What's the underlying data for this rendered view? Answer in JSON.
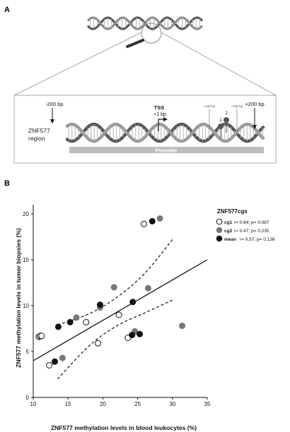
{
  "panel_a": {
    "label": "A",
    "gene_region_line1": "ZNF577",
    "gene_region_line2": "region",
    "pos_minus200": "-200 bp",
    "pos_plus200": "+200 bp",
    "tss_label": "TSS",
    "tss_pos": "+1 bp",
    "pos_plus100": "+100 bp",
    "pos_plus150": "+150 bp",
    "cg1_number": "1",
    "cg2_number": "2",
    "promoter_label": "Promoter"
  },
  "panel_b": {
    "label": "B"
  },
  "colors": {
    "black": "#111111",
    "gray": "#777777",
    "dna_dark": "#555555",
    "dna_light": "#9a9a9a",
    "promoter": "#bdbdbd",
    "frame": "#a8a8a8"
  },
  "chart_data": {
    "type": "scatter",
    "title": "",
    "xlabel": "ZNF577 methylation levels in blood leukocytes (%)",
    "ylabel": "ZNF577 methylation levels in tumor biopsies (%)",
    "xlim": [
      10,
      35
    ],
    "ylim": [
      0,
      21
    ],
    "xticks": [
      10,
      15,
      20,
      25,
      30,
      35
    ],
    "yticks": [
      0,
      5,
      10,
      15,
      20
    ],
    "grid": false,
    "legend_title": "ZNF577cgs",
    "legend_position": "top-right",
    "fit_line": {
      "slope": 0.44,
      "intercept": -0.4
    },
    "confidence_band": {
      "upper": [
        [
          13.5,
          7.9
        ],
        [
          18,
          9.1
        ],
        [
          22,
          10.9
        ],
        [
          26,
          13.5
        ],
        [
          30,
          17.2
        ]
      ],
      "lower": [
        [
          13.5,
          2.0
        ],
        [
          18,
          5.6
        ],
        [
          22,
          7.8
        ],
        [
          26,
          9.2
        ],
        [
          30,
          10.6
        ]
      ]
    },
    "series": [
      {
        "name": "cg1",
        "stats": "r= 0.64; p= 0.087",
        "marker": "open",
        "points": [
          [
            10.8,
            6.6
          ],
          [
            11.0,
            6.7
          ],
          [
            11.2,
            6.7
          ],
          [
            12.3,
            3.5
          ],
          [
            17.6,
            8.2
          ],
          [
            19.3,
            5.9
          ],
          [
            22.3,
            9.0
          ],
          [
            23.6,
            6.5
          ],
          [
            25.9,
            18.9
          ]
        ]
      },
      {
        "name": "cg2",
        "stats": "r= 0.47; p= 0.235",
        "marker": "gray",
        "points": [
          [
            14.2,
            4.3
          ],
          [
            16.2,
            8.7
          ],
          [
            19.6,
            9.8
          ],
          [
            21.6,
            12.0
          ],
          [
            24.6,
            7.2
          ],
          [
            26.5,
            11.9
          ],
          [
            28.2,
            19.5
          ],
          [
            31.4,
            7.8
          ]
        ]
      },
      {
        "name": "mean",
        "stats": "r= 0.57; p= 0.136",
        "marker": "black",
        "points": [
          [
            13.1,
            3.9
          ],
          [
            13.6,
            7.7
          ],
          [
            15.3,
            8.2
          ],
          [
            19.6,
            10.1
          ],
          [
            24.2,
            6.8
          ],
          [
            24.3,
            10.4
          ],
          [
            25.3,
            6.9
          ],
          [
            27.1,
            19.2
          ]
        ]
      }
    ]
  }
}
